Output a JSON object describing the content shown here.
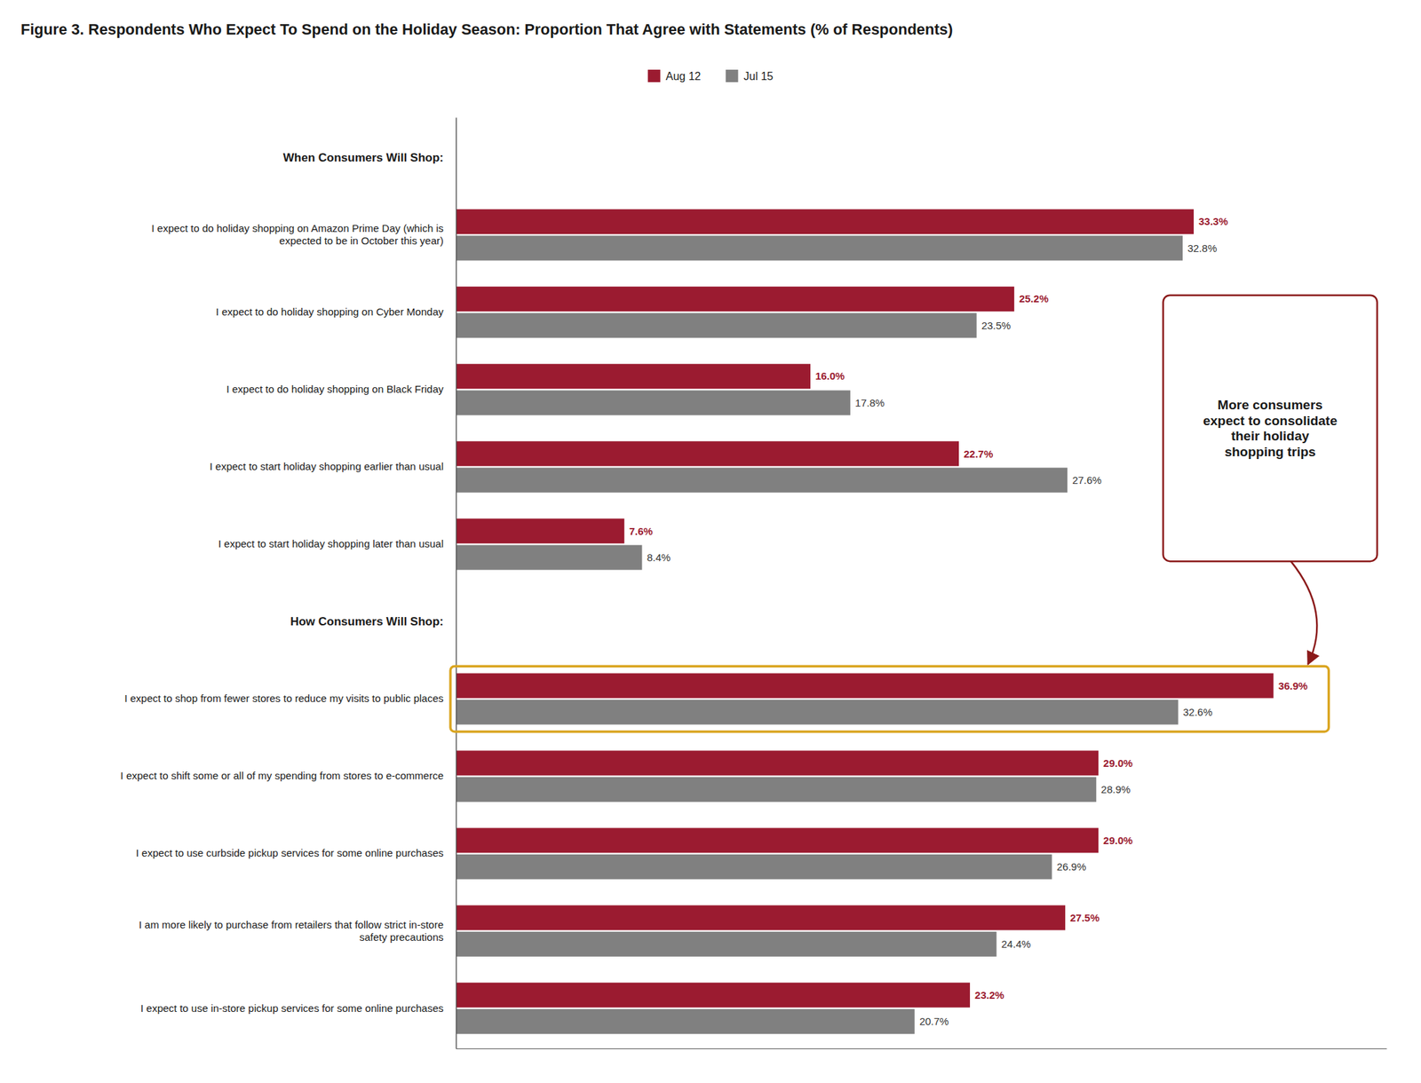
{
  "chart_data": {
    "type": "bar",
    "orientation": "horizontal",
    "title": "Figure 3. Respondents Who Expect To Spend on the Holiday Season: Proportion That Agree with Statements (% of Respondents)",
    "categories": [
      "When Consumers Will Shop:",
      "I expect to do holiday shopping on Amazon Prime Day (which is\nexpected to be in October this year)",
      "I expect to do holiday shopping on Cyber Monday",
      "I expect to do holiday shopping on Black Friday",
      "I expect to start holiday shopping earlier than usual",
      "I expect to start holiday shopping later than usual",
      "How Consumers Will Shop:",
      "I expect to shop from fewer stores to reduce my visits to public places",
      "I expect to shift some or all of my spending from stores to e-commerce",
      "I expect to use curbside pickup services for some online purchases",
      "I am more likely to purchase from retailers that follow strict in-store\nsafety precautions",
      "I expect to use in-store pickup services for some online purchases"
    ],
    "series": [
      {
        "name": "Aug 12",
        "color": "#9B1B30",
        "values": [
          null,
          33.3,
          25.2,
          16.0,
          22.7,
          7.6,
          null,
          36.9,
          29.0,
          29.0,
          27.5,
          23.2
        ],
        "value_labels": [
          null,
          "33.3%",
          "25.2%",
          "16.0%",
          "22.7%",
          "7.6%",
          null,
          "36.9%",
          "29.0%",
          "29.0%",
          "27.5%",
          "23.2%"
        ]
      },
      {
        "name": "Jul 15",
        "color": "#808080",
        "values": [
          null,
          32.8,
          23.5,
          17.8,
          27.6,
          8.4,
          null,
          32.6,
          28.9,
          26.9,
          24.4,
          20.7
        ],
        "value_labels": [
          null,
          "32.8%",
          "23.5%",
          "17.8%",
          "27.6%",
          "8.4%",
          null,
          "32.6%",
          "28.9%",
          "26.9%",
          "24.4%",
          "20.7%"
        ]
      }
    ],
    "xlim": [
      0,
      42
    ],
    "grid": false,
    "legend": "top",
    "data_labels": true,
    "tick_labels": "y",
    "annotations": [
      {
        "text": "More consumers\nexpect to consolidate\ntheir holiday\nshopping trips",
        "target": "I expect to shop from fewer stores to reduce my visits to public places",
        "color": "#8B1A1A",
        "highlight_color": "#DAA520"
      }
    ]
  }
}
